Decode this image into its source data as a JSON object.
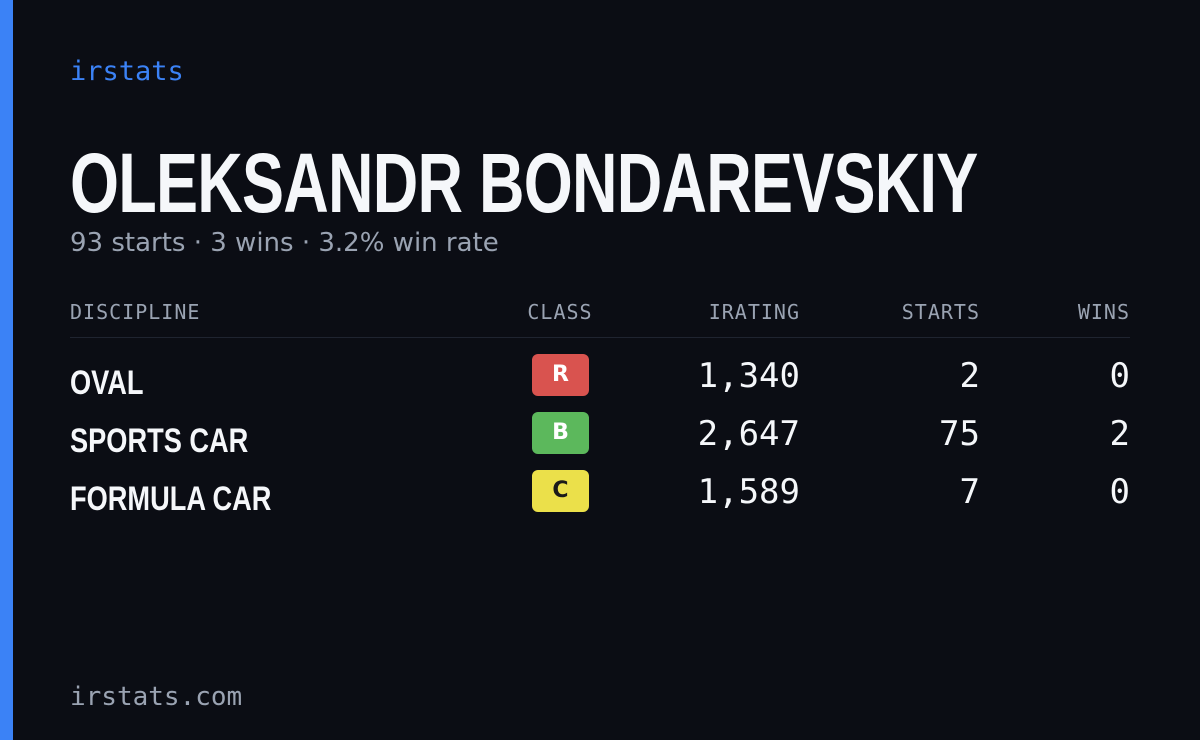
{
  "header": {
    "brand": "irstats"
  },
  "profile": {
    "name": "OLEKSANDR BONDAREVSKIY",
    "summary": "93 starts · 3 wins · 3.2% win rate"
  },
  "table": {
    "columns": [
      "DISCIPLINE",
      "CLASS",
      "IRATING",
      "STARTS",
      "WINS"
    ],
    "rows": [
      [
        "OVAL",
        "R",
        "1,340",
        "2",
        "0"
      ],
      [
        "SPORTS CAR",
        "B",
        "2,647",
        "75",
        "2"
      ],
      [
        "FORMULA CAR",
        "C",
        "1,589",
        "7",
        "0"
      ]
    ]
  },
  "footer": {
    "url": "irstats.com"
  }
}
